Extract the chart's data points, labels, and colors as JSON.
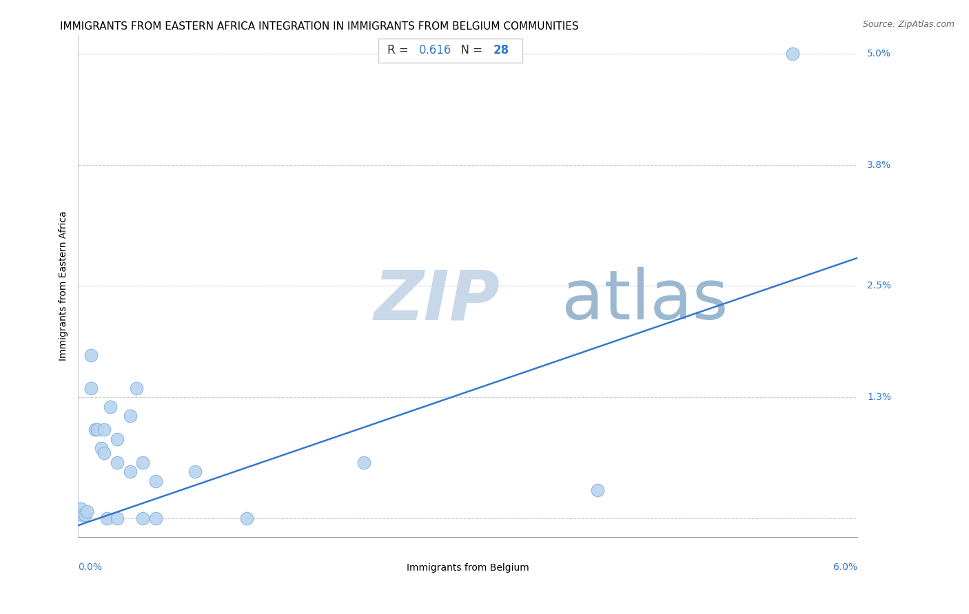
{
  "title": "IMMIGRANTS FROM EASTERN AFRICA INTEGRATION IN IMMIGRANTS FROM BELGIUM COMMUNITIES",
  "source": "Source: ZipAtlas.com",
  "xlabel": "Immigrants from Belgium",
  "ylabel": "Immigrants from Eastern Africa",
  "R": 0.616,
  "N": 28,
  "xlim": [
    0.0,
    0.06
  ],
  "ylim": [
    -0.002,
    0.052
  ],
  "xticks": [
    0.0,
    0.01,
    0.02,
    0.03,
    0.04,
    0.05,
    0.06
  ],
  "ytick_positions": [
    0.0,
    0.013,
    0.025,
    0.038,
    0.05
  ],
  "ytick_labels": [
    "",
    "1.3%",
    "2.5%",
    "3.8%",
    "5.0%"
  ],
  "scatter_color": "#b8d4f0",
  "scatter_edgecolor": "#7aaade",
  "line_color": "#3377cc",
  "grid_color": "#cccccc",
  "watermark_zip_color": "#c8d8e8",
  "watermark_atlas_color": "#9ab8d0",
  "points_x": [
    0.0002,
    0.0003,
    0.0005,
    0.0007,
    0.001,
    0.001,
    0.0013,
    0.0015,
    0.0018,
    0.002,
    0.002,
    0.0022,
    0.0025,
    0.003,
    0.003,
    0.003,
    0.004,
    0.004,
    0.0045,
    0.005,
    0.005,
    0.006,
    0.006,
    0.009,
    0.013,
    0.022,
    0.04,
    0.055
  ],
  "points_y": [
    0.001,
    0.0003,
    0.0003,
    0.0007,
    0.0175,
    0.014,
    0.0095,
    0.0095,
    0.0075,
    0.0095,
    0.007,
    0.0,
    0.012,
    0.0,
    0.0085,
    0.006,
    0.011,
    0.005,
    0.014,
    0.0,
    0.006,
    0.004,
    0.0,
    0.005,
    0.0,
    0.006,
    0.003,
    0.05
  ],
  "line_x0": 0.0,
  "line_y0": -0.0008,
  "line_x1": 0.06,
  "line_y1": 0.028,
  "title_fontsize": 11,
  "label_fontsize": 10,
  "tick_fontsize": 10,
  "source_fontsize": 9,
  "annotation_fontsize": 12
}
